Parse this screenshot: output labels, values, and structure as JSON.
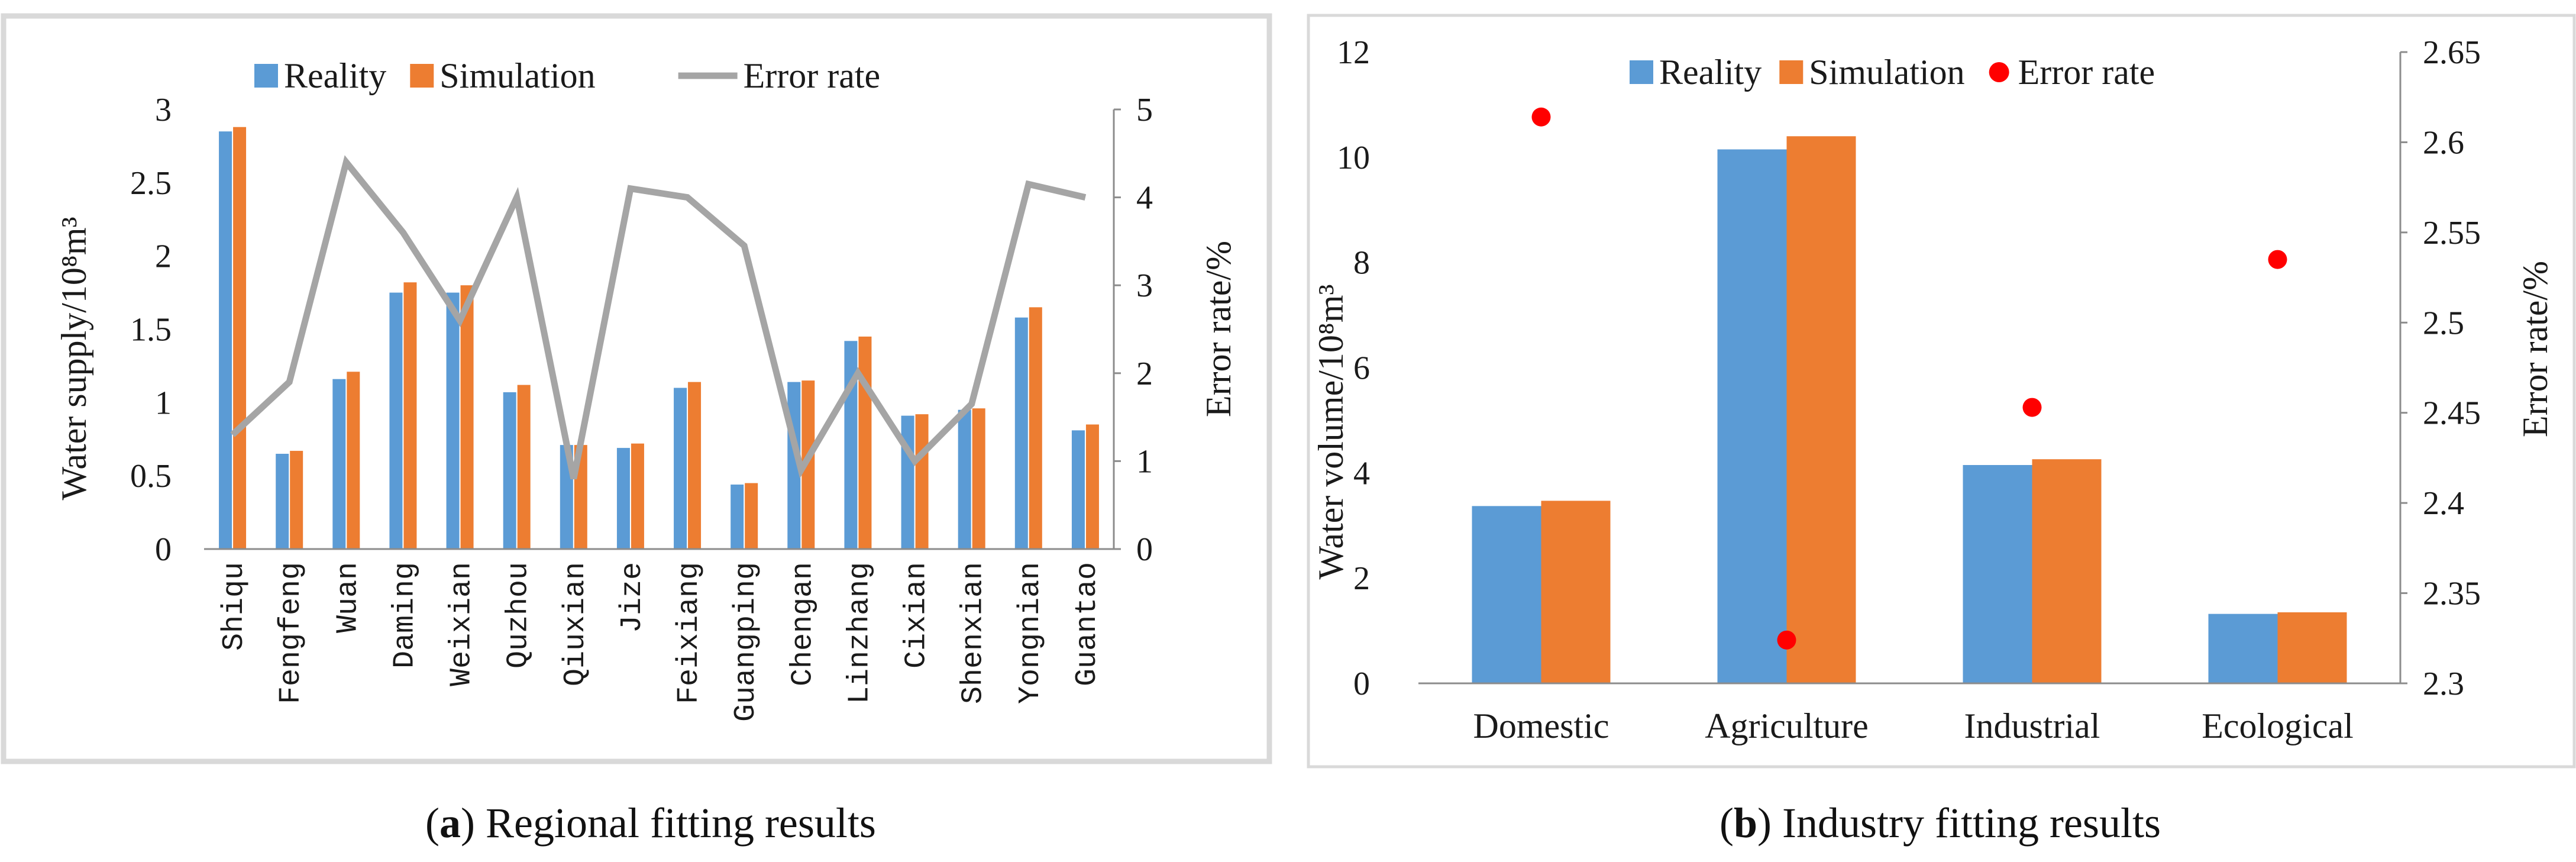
{
  "colors": {
    "reality": "#5b9bd5",
    "simulation": "#ed7d31",
    "error_line": "#a5a5a5",
    "error_dot": "#ff0000",
    "frame_a": "#d9d9d9",
    "frame_b": "#d9d9d9"
  },
  "captions": {
    "a_letter": "a",
    "a_text": " Regional fitting results",
    "b_letter": "b",
    "b_text": " Industry fitting results"
  },
  "chart_data": [
    {
      "type": "bar",
      "id": "regional",
      "title": "",
      "categories": [
        "Shiqu",
        "Fengfeng",
        "Wuan",
        "Daming",
        "Weixian",
        "Quzhou",
        "Qiuxian",
        "Jize",
        "Feixiang",
        "Guangping",
        "Chengan",
        "Linzhang",
        "Cixian",
        "Shenxian",
        "Yongnian",
        "Guantao"
      ],
      "series": [
        {
          "name": "Reality",
          "kind": "bar",
          "axis": "left",
          "values": [
            2.85,
            0.65,
            1.16,
            1.75,
            1.75,
            1.07,
            0.71,
            0.69,
            1.1,
            0.44,
            1.14,
            1.42,
            0.91,
            0.95,
            1.58,
            0.81
          ]
        },
        {
          "name": "Simulation",
          "kind": "bar",
          "axis": "left",
          "values": [
            2.88,
            0.67,
            1.21,
            1.82,
            1.8,
            1.12,
            0.71,
            0.72,
            1.14,
            0.45,
            1.15,
            1.45,
            0.92,
            0.96,
            1.65,
            0.85
          ]
        },
        {
          "name": "Error rate",
          "kind": "line",
          "axis": "right",
          "values": [
            1.3,
            1.9,
            4.4,
            3.6,
            2.6,
            4.0,
            0.8,
            4.1,
            4.0,
            3.45,
            0.9,
            2.0,
            1.0,
            1.65,
            4.15,
            4.0
          ]
        }
      ],
      "ylabel": "Water supply/10⁸m³",
      "y2label": "Error rate/%",
      "ylim": [
        0,
        3
      ],
      "yticks": [
        "0",
        "0.5",
        "1",
        "1.5",
        "2",
        "2.5",
        "3"
      ],
      "y2lim": [
        0,
        5
      ],
      "y2ticks": [
        "0",
        "1",
        "2",
        "3",
        "4",
        "5"
      ],
      "legend": [
        "Reality",
        "Simulation",
        "Error rate"
      ],
      "legend_position": "top"
    },
    {
      "type": "bar",
      "id": "industry",
      "title": "",
      "categories": [
        "Domestic",
        "Agriculture",
        "Industrial",
        "Ecological"
      ],
      "series": [
        {
          "name": "Reality",
          "kind": "bar",
          "axis": "left",
          "values": [
            3.37,
            10.15,
            4.15,
            1.32
          ]
        },
        {
          "name": "Simulation",
          "kind": "bar",
          "axis": "left",
          "values": [
            3.47,
            10.4,
            4.26,
            1.35
          ]
        },
        {
          "name": "Error rate",
          "kind": "scatter",
          "axis": "right",
          "values": [
            2.614,
            2.324,
            2.453,
            2.535
          ]
        }
      ],
      "ylabel": "Water volume/10⁸m³",
      "y2label": "Error rate/%",
      "ylim": [
        0,
        12
      ],
      "yticks": [
        "0",
        "2",
        "4",
        "6",
        "8",
        "10",
        "12"
      ],
      "y2lim": [
        2.3,
        2.65
      ],
      "y2ticks": [
        "2.3",
        "2.35",
        "2.4",
        "2.45",
        "2.5",
        "2.55",
        "2.6",
        "2.65"
      ],
      "legend": [
        "Reality",
        "Simulation",
        "Error rate"
      ],
      "legend_position": "top"
    }
  ]
}
